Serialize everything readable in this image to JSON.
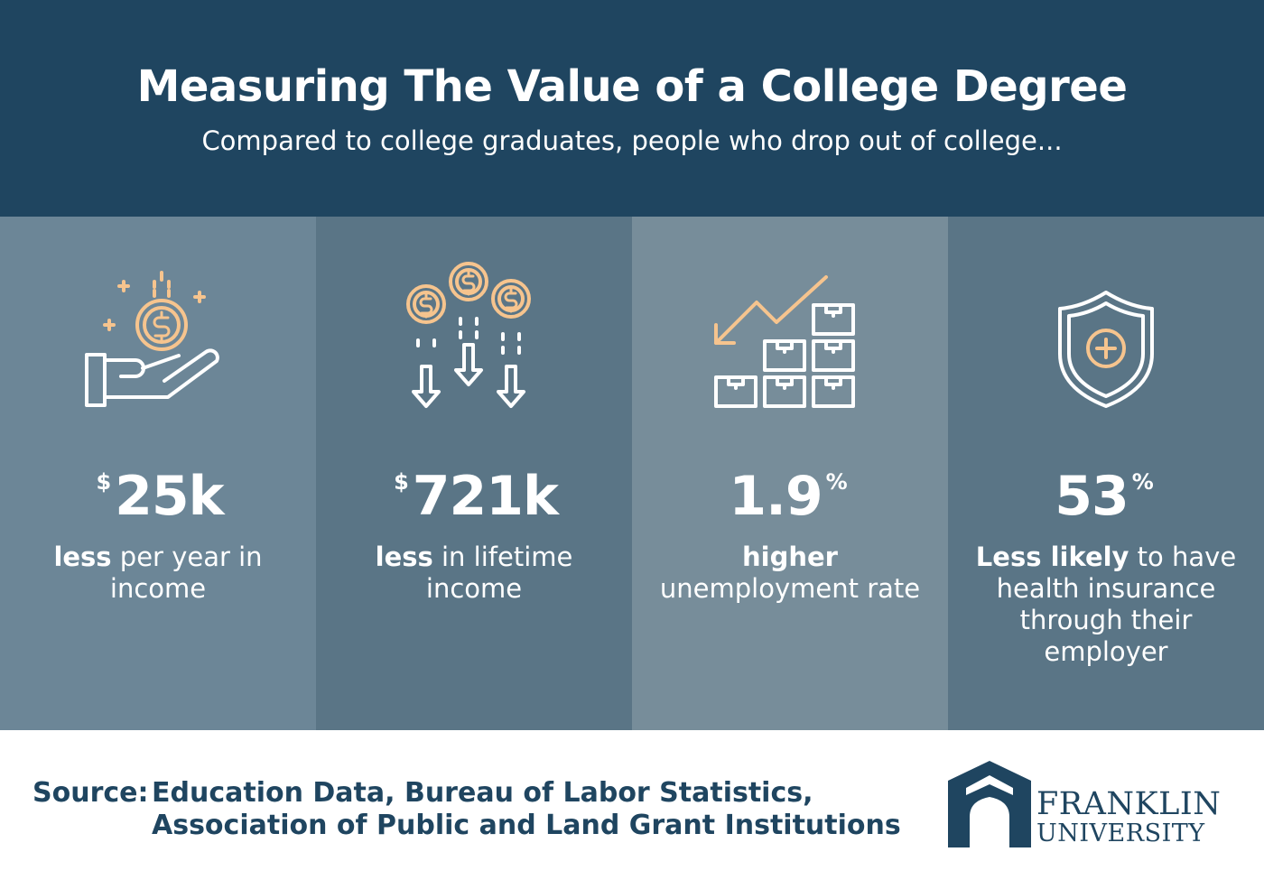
{
  "header": {
    "title": "Measuring The Value of a College Degree",
    "subtitle": "Compared to college graduates, people who drop out of college..."
  },
  "stats": [
    {
      "icon": "hand-holding-coin-icon",
      "prefix": "$",
      "value": "25k",
      "suffix": "",
      "desc_bold": "less",
      "desc_rest": " per year in income"
    },
    {
      "icon": "coins-falling-arrows-icon",
      "prefix": "$",
      "value": "721k",
      "suffix": "",
      "desc_bold": "less",
      "desc_rest": " in lifetime income"
    },
    {
      "icon": "declining-boxes-chart-icon",
      "prefix": "",
      "value": "1.9",
      "suffix": "%",
      "desc_bold": "higher",
      "desc_rest": " unemployment rate"
    },
    {
      "icon": "shield-plus-icon",
      "prefix": "",
      "value": "53",
      "suffix": "%",
      "desc_bold": "Less likely",
      "desc_rest": " to have health insurance through their employer"
    }
  ],
  "footer": {
    "source_label": "Source:",
    "source_text": "Education Data, Bureau of Labor Statistics, Association of Public and Land Grant Institutions",
    "logo_line1": "FRANKLIN",
    "logo_line2": "UNIVERSITY"
  },
  "colors": {
    "navy": "#1f4560",
    "accent": "#f6c48e",
    "col1": "#6c8697",
    "col2": "#5a7586",
    "col3": "#778d9a",
    "col4": "#5a7586"
  }
}
